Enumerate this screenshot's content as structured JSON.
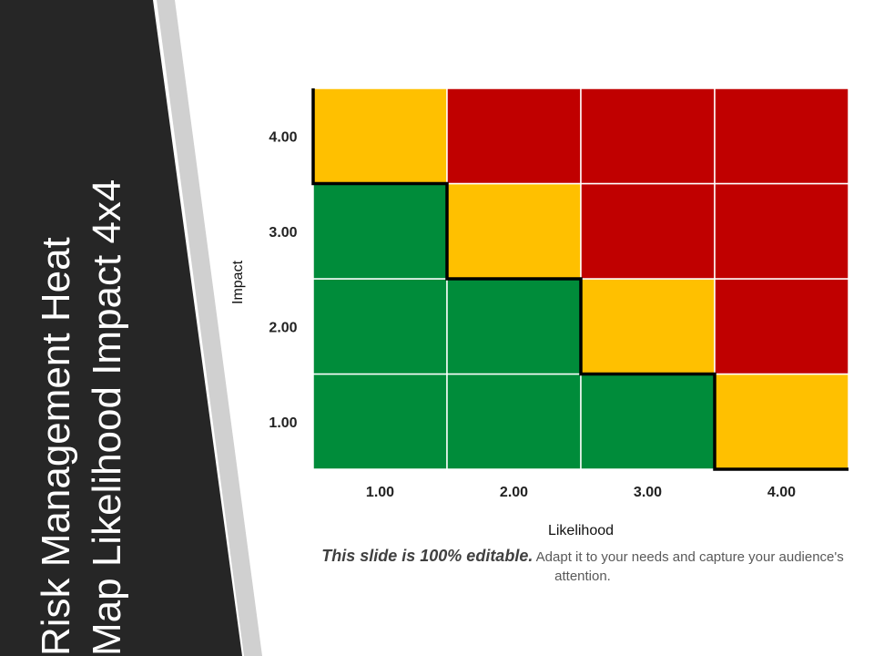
{
  "slide": {
    "title_line1": "Risk Management Heat",
    "title_line2": "Map Likelihood Impact 4x4",
    "caption_bold": "This slide is 100% editable.",
    "caption_rest": " Adapt it to your needs and capture your audience's attention."
  },
  "colors": {
    "panel": "#262626",
    "stripe": "#d0d0d0",
    "green": "#008c3a",
    "yellow": "#ffc000",
    "red": "#c00000",
    "grid": "#ffffff",
    "boundary": "#000000"
  },
  "chart_data": {
    "type": "heatmap",
    "title": "",
    "xlabel": "Likelihood",
    "ylabel": "Impact",
    "x_categories": [
      "1.00",
      "2.00",
      "3.00",
      "4.00"
    ],
    "y_categories": [
      "1.00",
      "2.00",
      "3.00",
      "4.00"
    ],
    "levels": [
      "green",
      "yellow",
      "red"
    ],
    "cells": [
      [
        "green",
        "green",
        "green",
        "yellow"
      ],
      [
        "green",
        "green",
        "yellow",
        "red"
      ],
      [
        "green",
        "yellow",
        "red",
        "red"
      ],
      [
        "yellow",
        "red",
        "red",
        "red"
      ]
    ],
    "grid": true,
    "legend": "none"
  }
}
